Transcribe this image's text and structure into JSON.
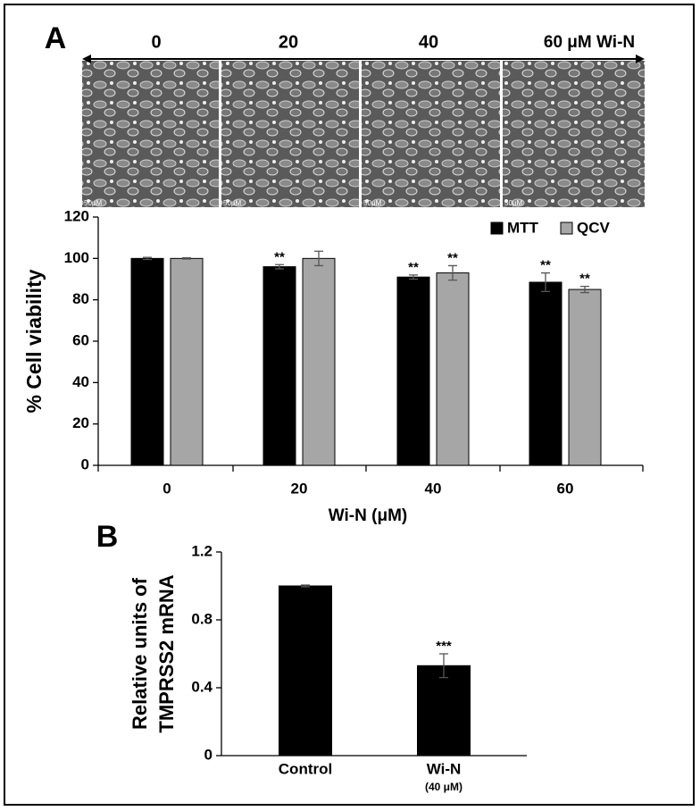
{
  "micrographs": {
    "labels": [
      "0",
      "20",
      "40",
      "60 μM Wi-N"
    ],
    "scale_bar": "50μM"
  },
  "chart_data": [
    {
      "type": "bar",
      "panel_label": "A",
      "x_label": "Wi-N (μM)",
      "y_label": "% Cell viability",
      "categories": [
        "0",
        "20",
        "40",
        "60"
      ],
      "series": [
        {
          "name": "MTT",
          "color": "#000000",
          "values": [
            100,
            96,
            91,
            88.5
          ],
          "errors": [
            0.5,
            1,
            1,
            4.5
          ],
          "annotations": [
            null,
            "**",
            "**",
            "**"
          ]
        },
        {
          "name": "QCV",
          "color": "#a6a6a6",
          "values": [
            100,
            100,
            93,
            85
          ],
          "errors": [
            0.3,
            3.5,
            3.5,
            1.5
          ],
          "annotations": [
            null,
            null,
            "**",
            "**"
          ]
        }
      ],
      "ylim": [
        0,
        120
      ],
      "yticks": [
        0,
        20,
        40,
        60,
        80,
        100,
        120
      ],
      "legend": "top-right"
    },
    {
      "type": "bar",
      "panel_label": "B",
      "y_label": [
        "Relative units of",
        "TMPRSS2 mRNA"
      ],
      "categories": [
        "Control",
        "Wi-N"
      ],
      "category_sublabels": [
        null,
        "(40 μM)"
      ],
      "series": [
        {
          "color": "#000000",
          "values": [
            1.0,
            0.53
          ],
          "errors": [
            0.005,
            0.07
          ],
          "annotations": [
            null,
            "***"
          ]
        }
      ],
      "ylim": [
        0,
        1.2
      ],
      "yticks": [
        0,
        0.4,
        0.8,
        1.2
      ]
    }
  ]
}
